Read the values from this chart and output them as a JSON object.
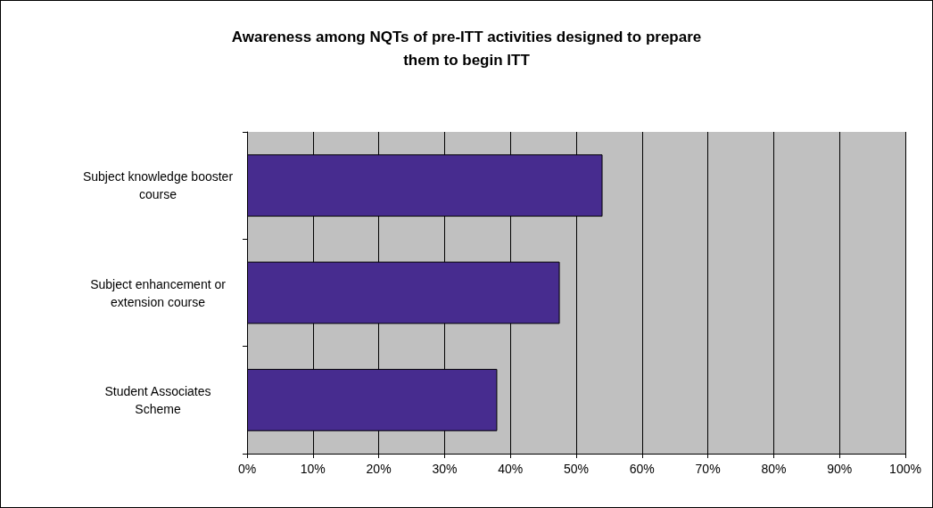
{
  "chart_data": {
    "type": "bar",
    "orientation": "horizontal",
    "title": "Awareness among NQTs of pre-ITT activities designed to prepare\nthem to begin ITT",
    "categories": [
      "Subject knowledge booster\ncourse",
      "Subject enhancement or\nextension course",
      "Student Associates\nScheme"
    ],
    "values": [
      54,
      47.5,
      38
    ],
    "color": "#472c8f",
    "xlim": [
      0,
      100
    ],
    "xticks": [
      {
        "value": 0,
        "label": "0%"
      },
      {
        "value": 10,
        "label": "10%"
      },
      {
        "value": 20,
        "label": "20%"
      },
      {
        "value": 30,
        "label": "30%"
      },
      {
        "value": 40,
        "label": "40%"
      },
      {
        "value": 50,
        "label": "50%"
      },
      {
        "value": 60,
        "label": "60%"
      },
      {
        "value": 70,
        "label": "70%"
      },
      {
        "value": 80,
        "label": "80%"
      },
      {
        "value": 90,
        "label": "90%"
      },
      {
        "value": 100,
        "label": "100%"
      }
    ],
    "grid": "x"
  }
}
